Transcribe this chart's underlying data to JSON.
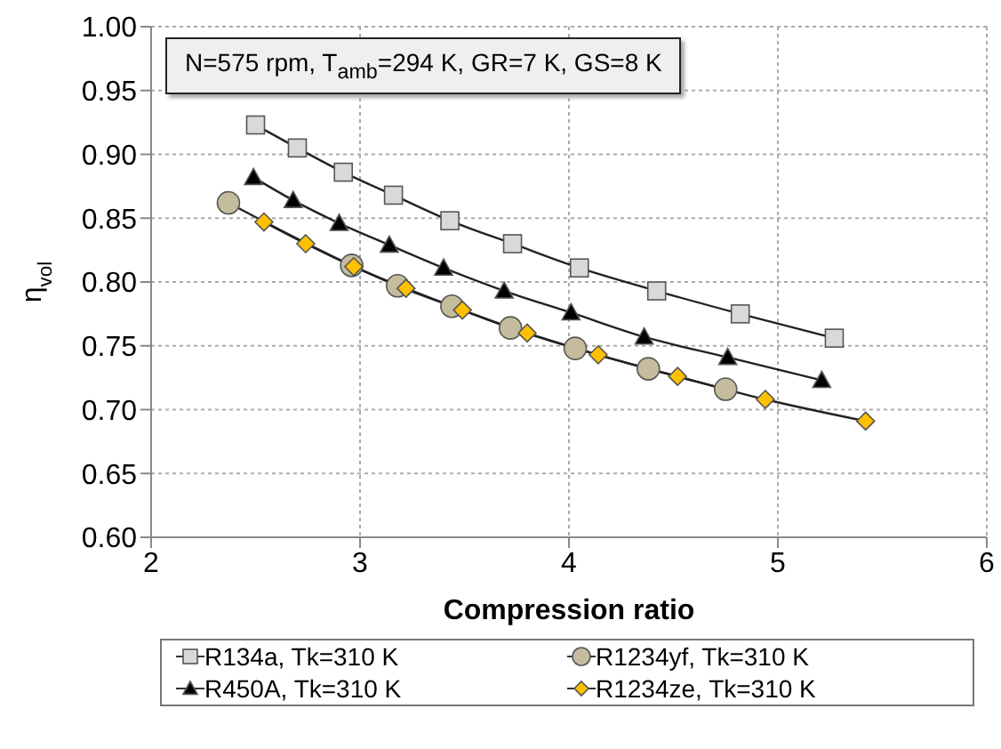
{
  "chart_data": {
    "type": "line",
    "xlabel": "Compression ratio",
    "ylabel": "η$_{vol}$",
    "annotations": [
      "N=575 rpm, T$_{amb}$=294 K, GR=7 K, GS=8 K"
    ],
    "xlim": [
      2,
      6
    ],
    "xticks": [
      2,
      3,
      4,
      5,
      6
    ],
    "ylim": [
      0.6,
      1.0
    ],
    "yticks": [
      {
        "value": 0.6,
        "label": "0.60"
      },
      {
        "value": 0.65,
        "label": "0.65"
      },
      {
        "value": 0.7,
        "label": "0.70"
      },
      {
        "value": 0.75,
        "label": "0.75"
      },
      {
        "value": 0.8,
        "label": "0.80"
      },
      {
        "value": 0.85,
        "label": "0.85"
      },
      {
        "value": 0.9,
        "label": "0.90"
      },
      {
        "value": 0.95,
        "label": "0.95"
      },
      {
        "value": 1.0,
        "label": "1.00"
      }
    ],
    "grid": true,
    "legend": "bottom",
    "line_style": "solid",
    "series": [
      {
        "name": "R134a, Tk=310 K",
        "color": "#d9d9d9",
        "marker": "square",
        "x": [
          2.5,
          2.7,
          2.92,
          3.16,
          3.43,
          3.73,
          4.05,
          4.42,
          4.82,
          5.27
        ],
        "values": [
          0.923,
          0.905,
          0.886,
          0.868,
          0.848,
          0.83,
          0.811,
          0.793,
          0.775,
          0.756
        ]
      },
      {
        "name": "R1234yf, Tk=310 K",
        "color": "#c4bc9c",
        "marker": "circle",
        "x": [
          2.37,
          2.96,
          3.18,
          3.44,
          3.72,
          4.03,
          4.38,
          4.75
        ],
        "values": [
          0.862,
          0.813,
          0.797,
          0.781,
          0.764,
          0.748,
          0.732,
          0.716
        ]
      },
      {
        "name": "R450A, Tk=310 K",
        "color": "#000000",
        "marker": "triangle",
        "x": [
          2.49,
          2.68,
          2.9,
          3.14,
          3.4,
          3.69,
          4.01,
          4.36,
          4.76,
          5.21
        ],
        "values": [
          0.882,
          0.864,
          0.846,
          0.829,
          0.811,
          0.793,
          0.776,
          0.757,
          0.741,
          0.723
        ]
      },
      {
        "name": "R1234ze, Tk=310 K",
        "color": "#ffc000",
        "marker": "diamond",
        "x": [
          2.54,
          2.74,
          2.97,
          3.22,
          3.49,
          3.8,
          4.14,
          4.52,
          4.94,
          5.42
        ],
        "values": [
          0.847,
          0.83,
          0.812,
          0.795,
          0.778,
          0.76,
          0.743,
          0.726,
          0.708,
          0.691
        ]
      }
    ]
  }
}
